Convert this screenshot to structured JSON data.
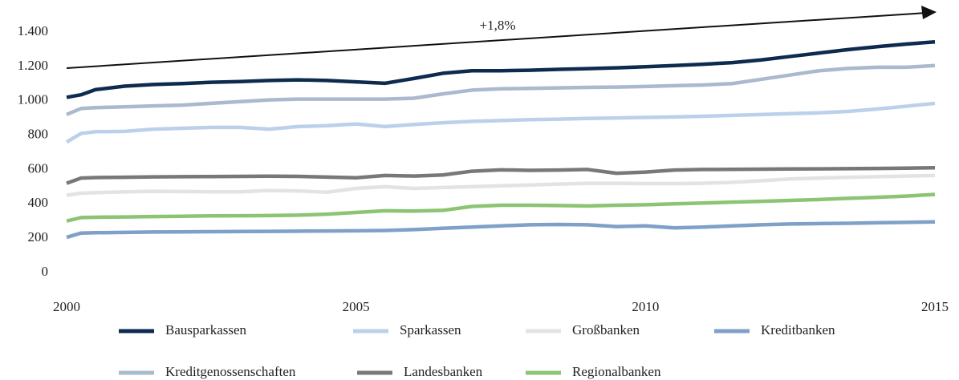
{
  "chart_data": {
    "type": "line",
    "annotation": "+1,8%",
    "x": [
      2000,
      2000.25,
      2000.5,
      2001,
      2001.5,
      2002,
      2002.5,
      2003,
      2003.5,
      2004,
      2004.5,
      2005,
      2005.5,
      2006,
      2006.5,
      2007,
      2007.5,
      2008,
      2008.5,
      2009,
      2009.5,
      2010,
      2010.5,
      2011,
      2011.5,
      2012,
      2012.5,
      2013,
      2013.5,
      2014,
      2014.5,
      2015
    ],
    "xlim": [
      2000,
      2015
    ],
    "xticks": [
      2000,
      2005,
      2010,
      2015
    ],
    "ylim": [
      0,
      1400
    ],
    "yticks": [
      0,
      200,
      400,
      600,
      800,
      {
        "value": 1000,
        "label": "1.000"
      },
      {
        "value": 1200,
        "label": "1.200"
      },
      {
        "value": 1400,
        "label": "1.400"
      }
    ],
    "series": [
      {
        "name": "Bausparkassen",
        "color": "#0d2b4f",
        "values": [
          1020,
          1035,
          1065,
          1085,
          1095,
          1100,
          1108,
          1112,
          1118,
          1122,
          1118,
          1110,
          1102,
          1130,
          1160,
          1175,
          1175,
          1178,
          1183,
          1187,
          1192,
          1198,
          1205,
          1213,
          1222,
          1238,
          1258,
          1278,
          1298,
          1315,
          1330,
          1343
        ]
      },
      {
        "name": "Sparkassen",
        "color": "#bcd0ea",
        "values": [
          760,
          810,
          820,
          822,
          835,
          840,
          845,
          845,
          835,
          850,
          855,
          865,
          850,
          862,
          872,
          880,
          885,
          890,
          893,
          897,
          900,
          903,
          906,
          910,
          915,
          920,
          925,
          930,
          938,
          952,
          968,
          985
        ]
      },
      {
        "name": "Großbanken",
        "color": "#e3e3e3",
        "values": [
          450,
          462,
          465,
          470,
          473,
          472,
          470,
          470,
          478,
          475,
          468,
          490,
          500,
          490,
          495,
          500,
          505,
          510,
          515,
          520,
          520,
          518,
          518,
          520,
          525,
          535,
          545,
          550,
          555,
          558,
          562,
          565
        ]
      },
      {
        "name": "Kreditbanken",
        "color": "#7fa0c8",
        "values": [
          205,
          230,
          232,
          234,
          236,
          237,
          238,
          239,
          240,
          241,
          242,
          243,
          245,
          250,
          258,
          265,
          272,
          278,
          280,
          278,
          268,
          272,
          260,
          265,
          272,
          278,
          283,
          285,
          287,
          290,
          292,
          295
        ]
      },
      {
        "name": "Kreditgenossenschaften",
        "color": "#aab9cd",
        "values": [
          920,
          955,
          960,
          965,
          970,
          975,
          985,
          995,
          1005,
          1010,
          1010,
          1010,
          1010,
          1015,
          1040,
          1062,
          1070,
          1072,
          1075,
          1078,
          1080,
          1083,
          1088,
          1092,
          1100,
          1125,
          1150,
          1175,
          1188,
          1195,
          1195,
          1205
        ]
      },
      {
        "name": "Landesbanken",
        "color": "#787878",
        "values": [
          520,
          550,
          553,
          555,
          557,
          558,
          559,
          560,
          561,
          560,
          556,
          552,
          565,
          562,
          568,
          590,
          598,
          595,
          597,
          600,
          578,
          585,
          597,
          600,
          601,
          602,
          603,
          604,
          605,
          606,
          608,
          610
        ]
      },
      {
        "name": "Regionalbanken",
        "color": "#8cc474",
        "values": [
          300,
          320,
          322,
          324,
          326,
          328,
          330,
          331,
          332,
          334,
          340,
          350,
          360,
          358,
          362,
          385,
          392,
          392,
          390,
          388,
          392,
          395,
          400,
          405,
          410,
          415,
          420,
          425,
          432,
          438,
          445,
          455
        ]
      }
    ]
  }
}
